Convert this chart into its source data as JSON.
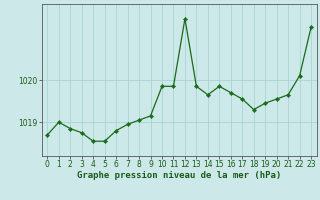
{
  "x": [
    0,
    1,
    2,
    3,
    4,
    5,
    6,
    7,
    8,
    9,
    10,
    11,
    12,
    13,
    14,
    15,
    16,
    17,
    18,
    19,
    20,
    21,
    22,
    23
  ],
  "y": [
    1018.7,
    1019.0,
    1018.85,
    1018.75,
    1018.55,
    1018.55,
    1018.8,
    1018.95,
    1019.05,
    1019.15,
    1019.85,
    1019.85,
    1021.45,
    1019.85,
    1019.65,
    1019.85,
    1019.7,
    1019.55,
    1019.3,
    1019.45,
    1019.55,
    1019.65,
    1020.1,
    1021.25
  ],
  "line_color": "#1a6b1a",
  "marker": "D",
  "marker_size": 2.2,
  "line_width": 0.9,
  "background_color": "#cce8e8",
  "grid_color": "#aad4d4",
  "xlabel": "Graphe pression niveau de la mer (hPa)",
  "xlabel_fontsize": 6.5,
  "xlabel_color": "#1a5c1a",
  "tick_label_color": "#1a5c1a",
  "yticks": [
    1019,
    1020
  ],
  "ylim": [
    1018.2,
    1021.8
  ],
  "xlim": [
    -0.5,
    23.5
  ],
  "tick_fontsize": 5.5,
  "axis_color": "#555555"
}
